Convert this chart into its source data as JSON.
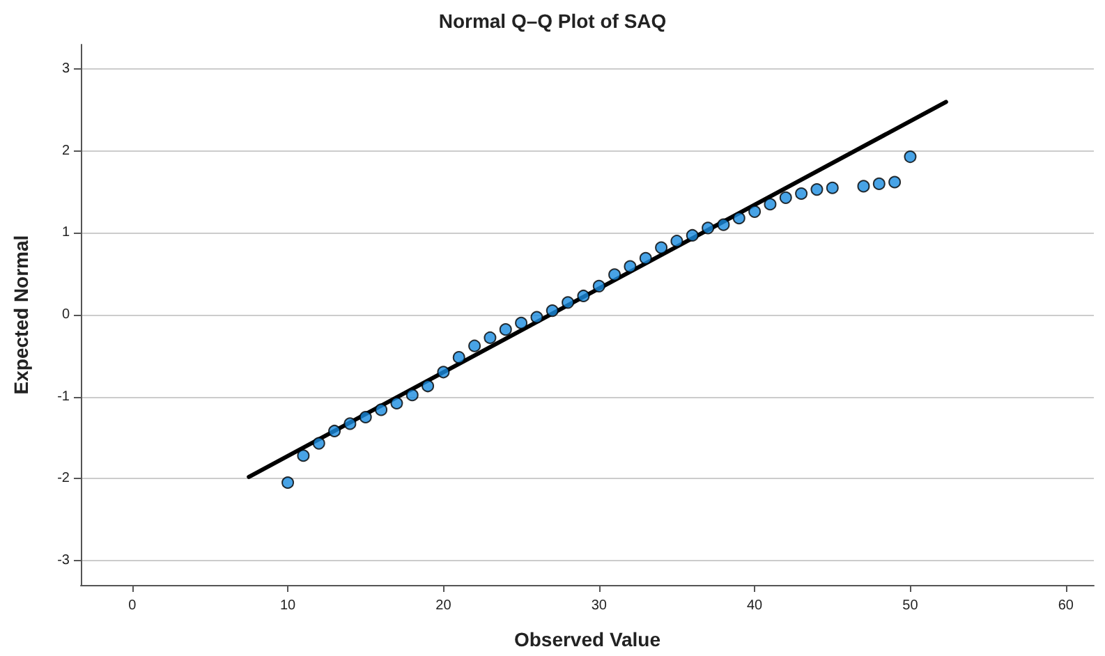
{
  "chart_data": {
    "type": "scatter",
    "title": "Normal Q–Q Plot of SAQ",
    "xlabel": "Observed Value",
    "ylabel": "Expected Normal",
    "xlim": [
      -3.3,
      61.8
    ],
    "xticks": [
      0,
      10,
      20,
      30,
      40,
      50,
      60
    ],
    "ylim": [
      -3.3,
      3.3
    ],
    "yticks": [
      -3,
      -2,
      -1,
      0,
      1,
      2,
      3
    ],
    "grid": "y",
    "marker": "circle",
    "series": [
      {
        "color": "#1a8ce0",
        "x": [
          10,
          11,
          12,
          13,
          14,
          15,
          16,
          17,
          18,
          19,
          20,
          21,
          22,
          23,
          24,
          25,
          26,
          27,
          28,
          29,
          30,
          31,
          32,
          33,
          34,
          35,
          36,
          37,
          38,
          39,
          40,
          41,
          42,
          43,
          44,
          45,
          47,
          48,
          49,
          50
        ],
        "values": [
          -2.05,
          -1.72,
          -1.57,
          -1.42,
          -1.33,
          -1.25,
          -1.16,
          -1.08,
          -0.98,
          -0.87,
          -0.7,
          -0.52,
          -0.38,
          -0.28,
          -0.18,
          -0.1,
          -0.03,
          0.05,
          0.15,
          0.23,
          0.35,
          0.49,
          0.59,
          0.69,
          0.82,
          0.9,
          0.97,
          1.06,
          1.1,
          1.18,
          1.26,
          1.35,
          1.43,
          1.48,
          1.53,
          1.55,
          1.57,
          1.6,
          1.62,
          1.93
        ]
      },
      {
        "type": "line",
        "color": "#000000",
        "x": [
          7.5,
          52.3
        ],
        "values": [
          -1.98,
          2.6
        ],
        "marker": "none"
      }
    ]
  }
}
